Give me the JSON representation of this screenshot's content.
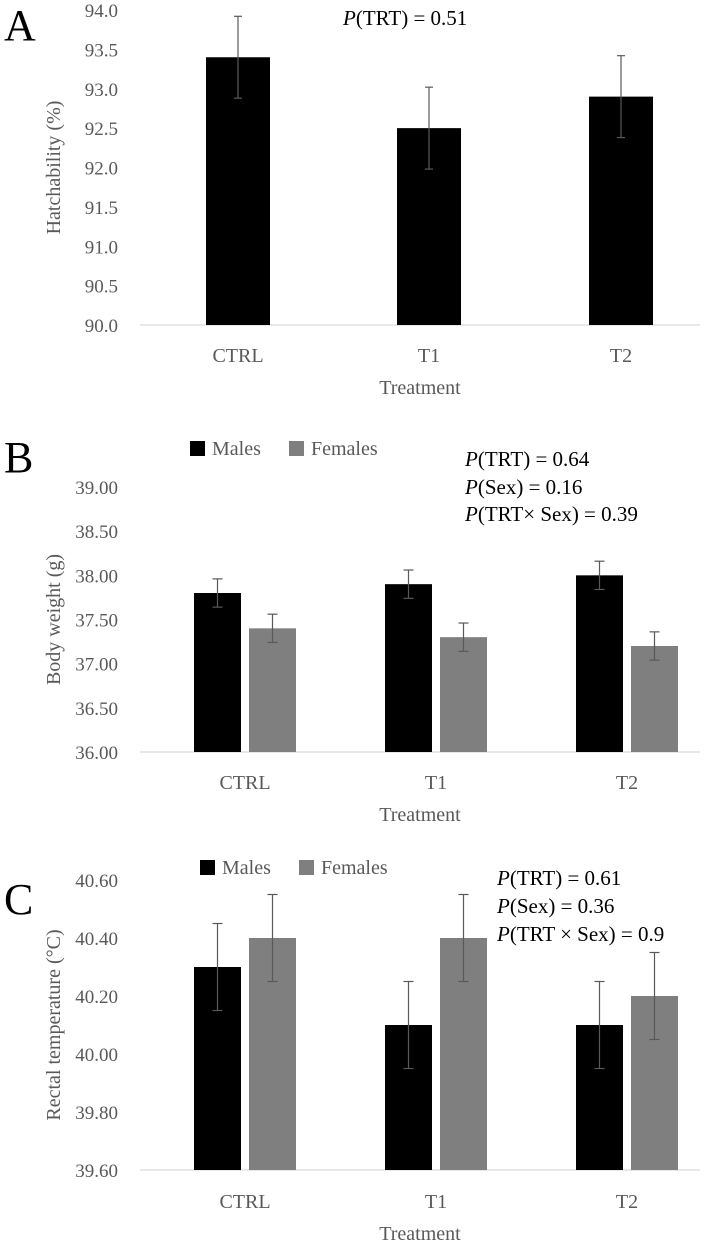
{
  "chart_data": [
    {
      "panel": "A",
      "type": "bar",
      "categories": [
        "CTRL",
        "T1",
        "T2"
      ],
      "series": [
        {
          "name": "",
          "values": [
            93.4,
            92.5,
            92.9
          ],
          "errors": [
            0.52,
            0.52,
            0.52
          ],
          "color": "#000000"
        }
      ],
      "xlabel": "Treatment",
      "ylabel": "Hatchability (%)",
      "ylim": [
        90.0,
        94.0
      ],
      "yticks": [
        "90.0",
        "90.5",
        "91.0",
        "91.5",
        "92.0",
        "92.5",
        "93.0",
        "93.5",
        "94.0"
      ],
      "legend": null,
      "annotations": [
        {
          "italic": "P",
          "rest": "(TRT) = 0.51"
        }
      ]
    },
    {
      "panel": "B",
      "type": "bar",
      "categories": [
        "CTRL",
        "T1",
        "T2"
      ],
      "series": [
        {
          "name": "Males",
          "values": [
            37.8,
            37.9,
            38.0
          ],
          "errors": [
            0.16,
            0.16,
            0.16
          ],
          "color": "#000000"
        },
        {
          "name": "Females",
          "values": [
            37.4,
            37.3,
            37.2
          ],
          "errors": [
            0.16,
            0.16,
            0.16
          ],
          "color": "#7f7f7f"
        }
      ],
      "xlabel": "Treatment",
      "ylabel": "Body weight (g)",
      "ylim": [
        36.0,
        39.0
      ],
      "yticks": [
        "36.00",
        "36.50",
        "37.00",
        "37.50",
        "38.00",
        "38.50",
        "39.00"
      ],
      "legend": "top-left",
      "annotations": [
        {
          "italic": "P",
          "rest": "(TRT) = 0.64"
        },
        {
          "italic": "P",
          "rest": "(Sex) = 0.16"
        },
        {
          "italic": "P",
          "rest": "(TRT× Sex) = 0.39"
        }
      ]
    },
    {
      "panel": "C",
      "type": "bar",
      "categories": [
        "CTRL",
        "T1",
        "T2"
      ],
      "series": [
        {
          "name": "Males",
          "values": [
            40.3,
            40.1,
            40.1
          ],
          "errors": [
            0.15,
            0.15,
            0.15
          ],
          "color": "#000000"
        },
        {
          "name": "Females",
          "values": [
            40.4,
            40.4,
            40.2
          ],
          "errors": [
            0.15,
            0.15,
            0.15
          ],
          "color": "#7f7f7f"
        }
      ],
      "xlabel": "Treatment",
      "ylabel": "Rectal temperature (°C)",
      "ylim": [
        39.6,
        40.6
      ],
      "yticks": [
        "39.60",
        "39.80",
        "40.00",
        "40.20",
        "40.40",
        "40.60"
      ],
      "legend": "top-left",
      "annotations": [
        {
          "italic": "P",
          "rest": "(TRT) = 0.61"
        },
        {
          "italic": "P",
          "rest": "(Sex) = 0.36"
        },
        {
          "italic": "P",
          "rest": "(TRT × Sex) = 0.9"
        }
      ]
    }
  ]
}
